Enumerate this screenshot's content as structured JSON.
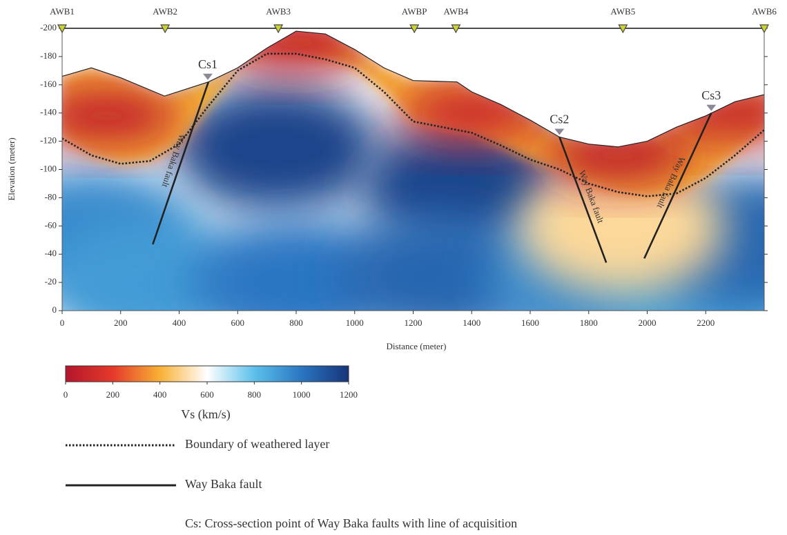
{
  "chart_data": {
    "type": "section",
    "xlabel": "Distance (meter)",
    "ylabel": "Elevation (meter)",
    "xlim": [
      0,
      2400
    ],
    "ylim": [
      0,
      -200
    ],
    "xticks": [
      0,
      200,
      400,
      600,
      800,
      1000,
      1200,
      1400,
      1600,
      1800,
      2000,
      2200
    ],
    "yticks": [
      -200,
      -180,
      -160,
      -140,
      -120,
      -100,
      -80,
      -60,
      -40,
      -20,
      0
    ],
    "stations": {
      "names": [
        "AWB1",
        "AWB2",
        "AWB3",
        "AWBP",
        "AWB4",
        "AWB5",
        "AWB6"
      ],
      "x": [
        0,
        352,
        739,
        1204,
        1346,
        1917,
        2400
      ],
      "color": "#c8d230"
    },
    "surface": {
      "x": [
        0,
        100,
        200,
        350,
        500,
        600,
        700,
        800,
        900,
        1000,
        1100,
        1200,
        1350,
        1400,
        1500,
        1600,
        1700,
        1800,
        1900,
        2000,
        2100,
        2200,
        2300,
        2400
      ],
      "elevation": [
        -166,
        -172,
        -165,
        -152,
        -162,
        -172,
        -186,
        -198,
        -196,
        -185,
        -172,
        -163,
        -162,
        -155,
        -146,
        -135,
        -123,
        -118,
        -116,
        -120,
        -130,
        -138,
        -148,
        -153
      ]
    },
    "weathered_boundary": {
      "name": "Boundary of weathered layer",
      "x": [
        0,
        100,
        200,
        300,
        400,
        500,
        600,
        700,
        800,
        900,
        1000,
        1100,
        1200,
        1300,
        1400,
        1500,
        1600,
        1700,
        1800,
        1900,
        2000,
        2100,
        2200,
        2300,
        2400
      ],
      "elevation": [
        -122,
        -110,
        -104,
        -106,
        -118,
        -145,
        -170,
        -182,
        -182,
        -178,
        -172,
        -155,
        -134,
        -130,
        -126,
        -117,
        -107,
        -100,
        -90,
        -84,
        -81,
        -83,
        -94,
        -110,
        -128
      ]
    },
    "faults": [
      {
        "label": "Way Baka fault",
        "x": [
          500,
          310
        ],
        "elevation": [
          -162,
          -47
        ]
      },
      {
        "label": "Way Baka fault",
        "x": [
          1700,
          1860
        ],
        "elevation": [
          -123,
          -34
        ]
      },
      {
        "label": "Way Baka fault",
        "x": [
          2219,
          1990
        ],
        "elevation": [
          -140,
          -37
        ]
      }
    ],
    "fault_legend": "Way Baka fault",
    "cross_sections": [
      {
        "label": "Cs1",
        "x": 498,
        "elevation": -162
      },
      {
        "label": "Cs2",
        "x": 1700,
        "elevation": -123
      },
      {
        "label": "Cs3",
        "x": 2219,
        "elevation": -140
      }
    ],
    "anomalies": [
      {
        "x": 732,
        "elevation": -115,
        "vs": 1150
      },
      {
        "x": 1370,
        "elevation": -88,
        "vs": 1150
      },
      {
        "x": 100,
        "elevation": -55,
        "vs": 950
      },
      {
        "x": 300,
        "elevation": -20,
        "vs": 900
      },
      {
        "x": 800,
        "elevation": -20,
        "vs": 1000
      },
      {
        "x": 1300,
        "elevation": -25,
        "vs": 1050
      },
      {
        "x": 1800,
        "elevation": -20,
        "vs": 950
      },
      {
        "x": 2200,
        "elevation": -20,
        "vs": 900
      },
      {
        "x": 2350,
        "elevation": -50,
        "vs": 1050
      },
      {
        "x": 1912,
        "elevation": -59,
        "vs": 500
      },
      {
        "x": 150,
        "elevation": -138,
        "vs": 50
      },
      {
        "x": 800,
        "elevation": -190,
        "vs": 50
      },
      {
        "x": 1400,
        "elevation": -140,
        "vs": 80
      },
      {
        "x": 1900,
        "elevation": -110,
        "vs": 30
      },
      {
        "x": 2300,
        "elevation": -140,
        "vs": 60
      }
    ],
    "colorbar": {
      "label": "Vs (km/s)",
      "ticks": [
        0,
        200,
        400,
        600,
        800,
        1000,
        1200
      ],
      "colors": [
        "#b3162b",
        "#e5392a",
        "#f8b135",
        "#ffffff",
        "#5cc0ea",
        "#2a76c2",
        "#173479"
      ]
    },
    "note": "Cs: Cross-section point of Way Baka faults with line of acquisition"
  }
}
